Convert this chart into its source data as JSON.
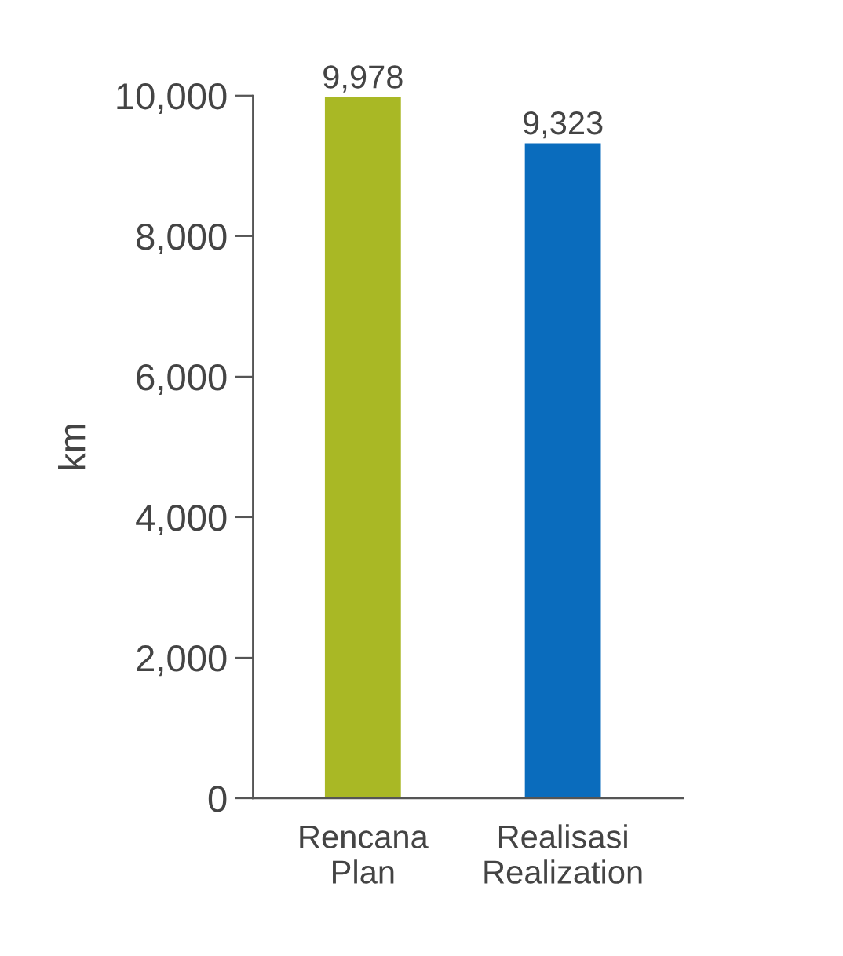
{
  "chart_data": {
    "type": "bar",
    "ylabel": "km",
    "categories": [
      "Rencana\nPlan",
      "Realisasi\nRealization"
    ],
    "values": [
      9978,
      9323
    ],
    "colors": [
      "#a9b825",
      "#0a6cbd"
    ],
    "value_labels": [
      "9,978",
      "9,323"
    ],
    "ylim": [
      0,
      10000
    ],
    "yticks": [
      0,
      {
        "value": 2000,
        "label": "2,000"
      },
      {
        "value": 4000,
        "label": "4,000"
      },
      {
        "value": 6000,
        "label": "6,000"
      },
      {
        "value": 8000,
        "label": "8,000"
      },
      {
        "value": 10000,
        "label": "10,000"
      }
    ],
    "grid": false,
    "legend": false
  }
}
